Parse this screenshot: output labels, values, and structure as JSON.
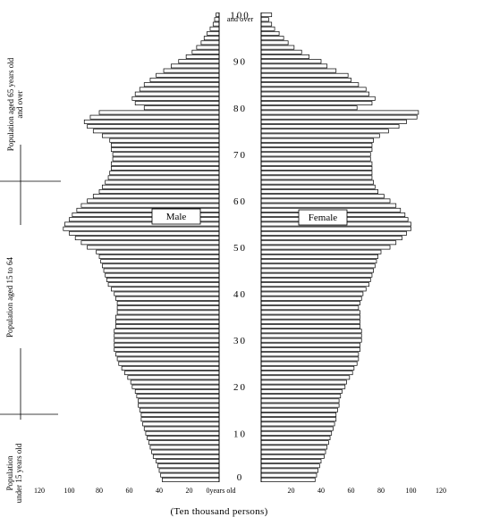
{
  "chart_data": {
    "type": "bar",
    "orientation": "population-pyramid",
    "x_unit_label": "(Ten thousand persons)",
    "zero_tick_label": "0years old",
    "x_ticks_male": [
      120,
      100,
      80,
      60,
      40,
      20,
      0
    ],
    "x_ticks_female": [
      20,
      40,
      60,
      80,
      100,
      120
    ],
    "xlim": [
      0,
      120
    ],
    "age_ticks": [
      "0",
      "10",
      "20",
      "30",
      "40",
      "50",
      "60",
      "70",
      "80",
      "90",
      "100"
    ],
    "top_age_label": "and over",
    "ylim": [
      0,
      100
    ],
    "series": [
      {
        "name": "Male",
        "values": [
          38,
          39,
          40,
          41,
          42,
          44,
          45,
          46,
          47,
          48,
          49,
          50,
          51,
          52,
          52,
          53,
          54,
          54,
          55,
          56,
          58,
          59,
          61,
          63,
          65,
          67,
          68,
          69,
          70,
          70,
          70,
          70,
          70,
          69,
          69,
          69,
          68,
          68,
          68,
          69,
          70,
          72,
          74,
          75,
          76,
          77,
          78,
          79,
          80,
          82,
          88,
          92,
          96,
          100,
          104,
          103,
          100,
          98,
          95,
          92,
          88,
          84,
          80,
          78,
          76,
          74,
          73,
          72,
          72,
          71,
          71,
          72,
          72,
          73,
          78,
          84,
          88,
          90,
          86,
          80,
          50,
          56,
          58,
          56,
          53,
          50,
          46,
          42,
          37,
          32,
          27,
          22,
          18,
          15,
          12,
          10,
          8,
          6,
          4,
          3,
          2
        ]
      },
      {
        "name": "Female",
        "values": [
          36,
          37,
          38,
          39,
          40,
          42,
          43,
          44,
          45,
          46,
          47,
          48,
          49,
          50,
          50,
          51,
          52,
          52,
          53,
          54,
          56,
          57,
          59,
          61,
          62,
          64,
          65,
          65,
          66,
          66,
          67,
          67,
          67,
          66,
          66,
          66,
          66,
          65,
          66,
          67,
          68,
          70,
          72,
          73,
          74,
          75,
          76,
          77,
          78,
          80,
          86,
          90,
          94,
          97,
          100,
          100,
          98,
          96,
          93,
          90,
          86,
          82,
          78,
          76,
          75,
          74,
          74,
          74,
          74,
          73,
          73,
          74,
          74,
          75,
          79,
          85,
          92,
          97,
          104,
          105,
          64,
          74,
          76,
          72,
          70,
          65,
          60,
          58,
          50,
          44,
          40,
          32,
          27,
          22,
          18,
          15,
          12,
          9,
          7,
          5,
          7
        ]
      }
    ]
  },
  "labels": {
    "male": "Male",
    "female": "Female",
    "group_65_over": "Population aged 65 years old\nand over",
    "group_15_64": "Population aged 15 to 64",
    "group_under_15": "Population\nunder 15 years old"
  }
}
